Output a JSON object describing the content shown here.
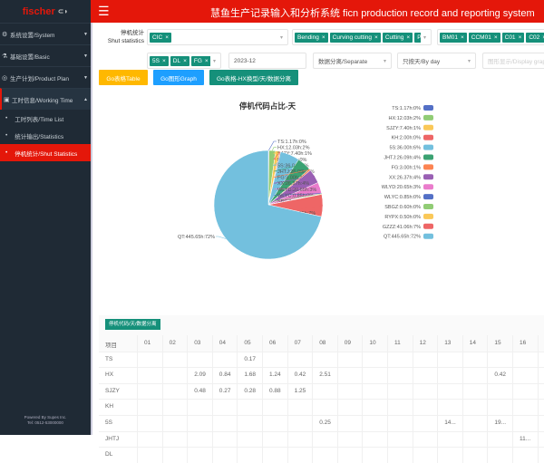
{
  "sidebar": {
    "logo": "fischer",
    "items": [
      {
        "label": "系统设置/System",
        "icon": "gear-icon"
      },
      {
        "label": "基础设置/Basic",
        "icon": "flask-icon"
      },
      {
        "label": "生产计划/Product Plan",
        "icon": "gauge-icon"
      },
      {
        "label": "工时信息/Working Time",
        "icon": "calendar-icon"
      }
    ],
    "subitems": [
      {
        "label": "工时列表/Time List"
      },
      {
        "label": "统计输出/Statistics"
      },
      {
        "label": "停机统计/Shut Statistics",
        "active": true
      }
    ],
    "footer1": "Powered By Supes Inc.",
    "footer2": "Tel: 0512-53000000"
  },
  "header": {
    "title": "慧鱼生产记录输入和分析系统 ficn production record and reporting system"
  },
  "filters": {
    "label1": "停机统计",
    "label2": "Shut statistics",
    "plant_tags": [
      "CIC"
    ],
    "process_tags": [
      "Bending",
      "Curving cutting",
      "Cutting",
      "P"
    ],
    "machine_tags": [
      "BM01",
      "CCM01",
      "C01",
      "C02"
    ],
    "code_tags": [
      "5S",
      "DL",
      "FG"
    ],
    "month": "2023-12",
    "mode": "数据分离/Separate",
    "period": "只按天/By day",
    "display_placeholder": "图形显示/Display graph"
  },
  "buttons": {
    "table": "Go表格Table",
    "graph": "Go图形Graph",
    "hx": "Go表格-HX换型/天/数据分离"
  },
  "colors": {
    "brand": "#e4170a",
    "teal": "#15907a",
    "yellow": "#ffb800",
    "blue": "#1e9fff"
  },
  "chart_data": {
    "type": "pie",
    "title": "停机代码占比-天",
    "legend_position": "right",
    "slices": [
      {
        "name": "TS",
        "value": 1.17,
        "label": "TS:1.17h:0%",
        "color": "#5470c6"
      },
      {
        "name": "HX",
        "value": 12.03,
        "label": "HX:12.03h:2%",
        "color": "#91cc75"
      },
      {
        "name": "SJZY",
        "value": 7.4,
        "label": "SJZY:7.40h:1%",
        "color": "#fac858"
      },
      {
        "name": "KH",
        "value": 2.0,
        "label": "KH:2.00h:0%",
        "color": "#ee6666"
      },
      {
        "name": "5S",
        "value": 36.0,
        "label": "5S:36.00h:6%",
        "color": "#73c0de"
      },
      {
        "name": "JHTJ",
        "value": 26.09,
        "label": "JHTJ:26.09h:4%",
        "color": "#3ba272"
      },
      {
        "name": "FG",
        "value": 3.0,
        "label": "FG:3.00h:1%",
        "color": "#fc8452"
      },
      {
        "name": "XX",
        "value": 26.37,
        "label": "XX:26.37h:4%",
        "color": "#9a60b4"
      },
      {
        "name": "WLYD",
        "value": 20.65,
        "label": "WLYD:20.65h:3%",
        "color": "#ea7ccc"
      },
      {
        "name": "WLYC",
        "value": 0.85,
        "label": "WLYC:0.85h:0%",
        "color": "#5470c6"
      },
      {
        "name": "SBGZ",
        "value": 0.6,
        "label": "SBGZ:0.60h:0%",
        "color": "#91cc75"
      },
      {
        "name": "RYPX",
        "value": 0.5,
        "label": "RYPX:0.50h:0%",
        "color": "#fac858"
      },
      {
        "name": "GZZZ",
        "value": 41.06,
        "label": "GZZZ:41.06h:7%",
        "color": "#ee6666"
      },
      {
        "name": "QT",
        "value": 445.65,
        "label": "QT:445.65h:72%",
        "color": "#73c0de"
      }
    ]
  },
  "table": {
    "tag": "停机代码/天/数据分离",
    "header": "项目",
    "days": [
      "01",
      "02",
      "03",
      "04",
      "05",
      "06",
      "07",
      "08",
      "09",
      "10",
      "11",
      "12",
      "13",
      "14",
      "15",
      "16"
    ],
    "rows": [
      {
        "name": "TS",
        "cells": {
          "05": "0.17"
        }
      },
      {
        "name": "HX",
        "cells": {
          "03": "2.09",
          "04": "0.84",
          "05": "1.68",
          "06": "1.24",
          "07": "0.42",
          "08": "2.51",
          "15": "0.42"
        }
      },
      {
        "name": "SJZY",
        "cells": {
          "03": "0.48",
          "04": "0.27",
          "05": "0.28",
          "06": "0.88",
          "07": "1.25"
        }
      },
      {
        "name": "KH",
        "cells": {}
      },
      {
        "name": "5S",
        "cells": {
          "08": "0.25",
          "13": "14...",
          "15": "19..."
        }
      },
      {
        "name": "JHTJ",
        "cells": {
          "16": "11..."
        }
      },
      {
        "name": "DL",
        "cells": {}
      }
    ]
  }
}
